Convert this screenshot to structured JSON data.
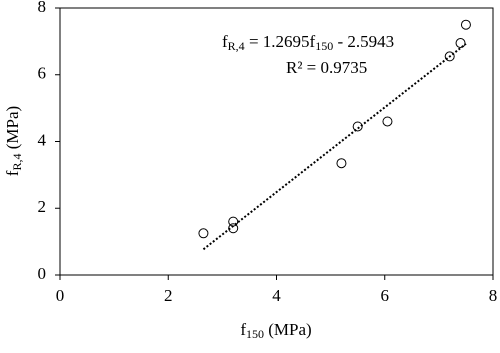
{
  "chart_data": {
    "type": "scatter",
    "x": [
      2.65,
      3.2,
      3.2,
      5.2,
      5.5,
      6.05,
      7.2,
      7.4,
      7.5
    ],
    "values": [
      1.25,
      1.6,
      1.4,
      3.35,
      4.45,
      4.6,
      6.55,
      6.95,
      7.5
    ],
    "color": "#000000",
    "xlim": [
      0,
      8
    ],
    "xticks": [
      0,
      2,
      4,
      6,
      8
    ],
    "ylim": [
      0,
      8
    ],
    "yticks": [
      0,
      2,
      4,
      6,
      8
    ],
    "x_label": {
      "main": "f",
      "sub": "150",
      "unit": " (MPa)"
    },
    "y_label": {
      "main": "f",
      "sub": "R,4",
      "unit": " (MPa)"
    },
    "trendline": {
      "slope": 1.2695,
      "intercept": -2.5943,
      "equation": {
        "lhs": "f",
        "lhs_sub": "R,4",
        "middle": " = 1.2695f",
        "middle_sub": "150",
        "tail": " - 2.5943"
      },
      "r2_label": "R² = 0.9735"
    }
  }
}
